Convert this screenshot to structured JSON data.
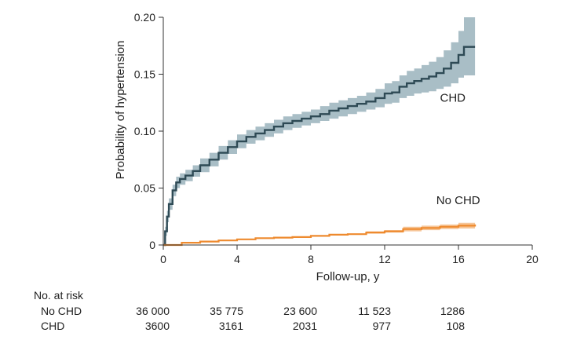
{
  "chart_data": {
    "type": "line",
    "title": "",
    "xlabel": "Follow-up, y",
    "ylabel": "Probability of hypertension",
    "xlim": [
      0,
      20
    ],
    "ylim": [
      0,
      0.2
    ],
    "x_ticks": [
      "0",
      "4",
      "8",
      "12",
      "16",
      "20"
    ],
    "y_ticks": [
      "0",
      "0.05",
      "0.10",
      "0.15",
      "0.20"
    ],
    "grid": false,
    "legend": "none",
    "series": [
      {
        "name": "CHD",
        "color": "#2e4a55",
        "band_color": "#a9bec6",
        "label_at": [
          15.0,
          0.126
        ],
        "x": [
          0,
          0.1,
          0.2,
          0.3,
          0.5,
          0.7,
          0.9,
          1.2,
          1.6,
          2.0,
          2.5,
          3.0,
          3.5,
          4.0,
          4.5,
          5.0,
          5.5,
          6.0,
          6.5,
          7.0,
          7.5,
          8.0,
          8.5,
          9.0,
          9.5,
          10.0,
          10.5,
          11.0,
          11.5,
          12.0,
          12.4,
          12.8,
          13.2,
          13.6,
          14.0,
          14.4,
          14.8,
          15.2,
          15.6,
          16.0,
          16.3,
          16.9
        ],
        "y": [
          0,
          0.012,
          0.025,
          0.036,
          0.048,
          0.055,
          0.058,
          0.061,
          0.065,
          0.07,
          0.075,
          0.081,
          0.086,
          0.091,
          0.095,
          0.098,
          0.101,
          0.104,
          0.107,
          0.109,
          0.111,
          0.113,
          0.115,
          0.118,
          0.12,
          0.122,
          0.124,
          0.126,
          0.129,
          0.133,
          0.134,
          0.139,
          0.142,
          0.144,
          0.146,
          0.148,
          0.151,
          0.155,
          0.16,
          0.167,
          0.174,
          0.174
        ],
        "lower": [
          0,
          0.008,
          0.02,
          0.031,
          0.043,
          0.05,
          0.053,
          0.056,
          0.06,
          0.064,
          0.069,
          0.075,
          0.08,
          0.085,
          0.089,
          0.092,
          0.095,
          0.098,
          0.101,
          0.103,
          0.105,
          0.107,
          0.109,
          0.111,
          0.113,
          0.115,
          0.117,
          0.119,
          0.121,
          0.124,
          0.125,
          0.129,
          0.131,
          0.133,
          0.134,
          0.135,
          0.137,
          0.139,
          0.142,
          0.147,
          0.149,
          0.149
        ],
        "upper": [
          0,
          0.016,
          0.03,
          0.041,
          0.053,
          0.06,
          0.063,
          0.066,
          0.07,
          0.076,
          0.081,
          0.087,
          0.092,
          0.097,
          0.101,
          0.104,
          0.107,
          0.11,
          0.113,
          0.115,
          0.117,
          0.119,
          0.122,
          0.125,
          0.127,
          0.129,
          0.131,
          0.134,
          0.137,
          0.142,
          0.144,
          0.149,
          0.153,
          0.155,
          0.158,
          0.161,
          0.165,
          0.171,
          0.178,
          0.188,
          0.2,
          0.2
        ]
      },
      {
        "name": "No CHD",
        "color": "#ee8a2e",
        "band_color": "#f6c597",
        "label_at": [
          14.8,
          0.036
        ],
        "x": [
          0,
          1,
          2,
          3,
          4,
          5,
          6,
          7,
          8,
          9,
          10,
          11,
          12,
          13,
          14,
          15,
          16,
          16.9
        ],
        "y": [
          0,
          0.002,
          0.003,
          0.004,
          0.005,
          0.006,
          0.0065,
          0.007,
          0.008,
          0.009,
          0.0095,
          0.011,
          0.012,
          0.014,
          0.015,
          0.016,
          0.017,
          0.018
        ],
        "lower": [
          0,
          0.0015,
          0.0025,
          0.0035,
          0.0045,
          0.0055,
          0.006,
          0.0065,
          0.0075,
          0.0085,
          0.009,
          0.01,
          0.011,
          0.012,
          0.013,
          0.014,
          0.0145,
          0.015
        ],
        "upper": [
          0,
          0.0025,
          0.0035,
          0.0045,
          0.0055,
          0.0065,
          0.007,
          0.0075,
          0.0085,
          0.0095,
          0.01,
          0.012,
          0.013,
          0.016,
          0.017,
          0.018,
          0.0195,
          0.021
        ]
      }
    ],
    "at_risk": {
      "title": "No. at risk",
      "rows": [
        {
          "label": "No CHD",
          "values": [
            "36 000",
            "35 775",
            "23 600",
            "11 523",
            "1286"
          ]
        },
        {
          "label": "CHD",
          "values": [
            "3600",
            "3161",
            "2031",
            "977",
            "108"
          ]
        }
      ],
      "at_x": [
        0,
        4,
        8,
        12,
        16
      ]
    }
  }
}
